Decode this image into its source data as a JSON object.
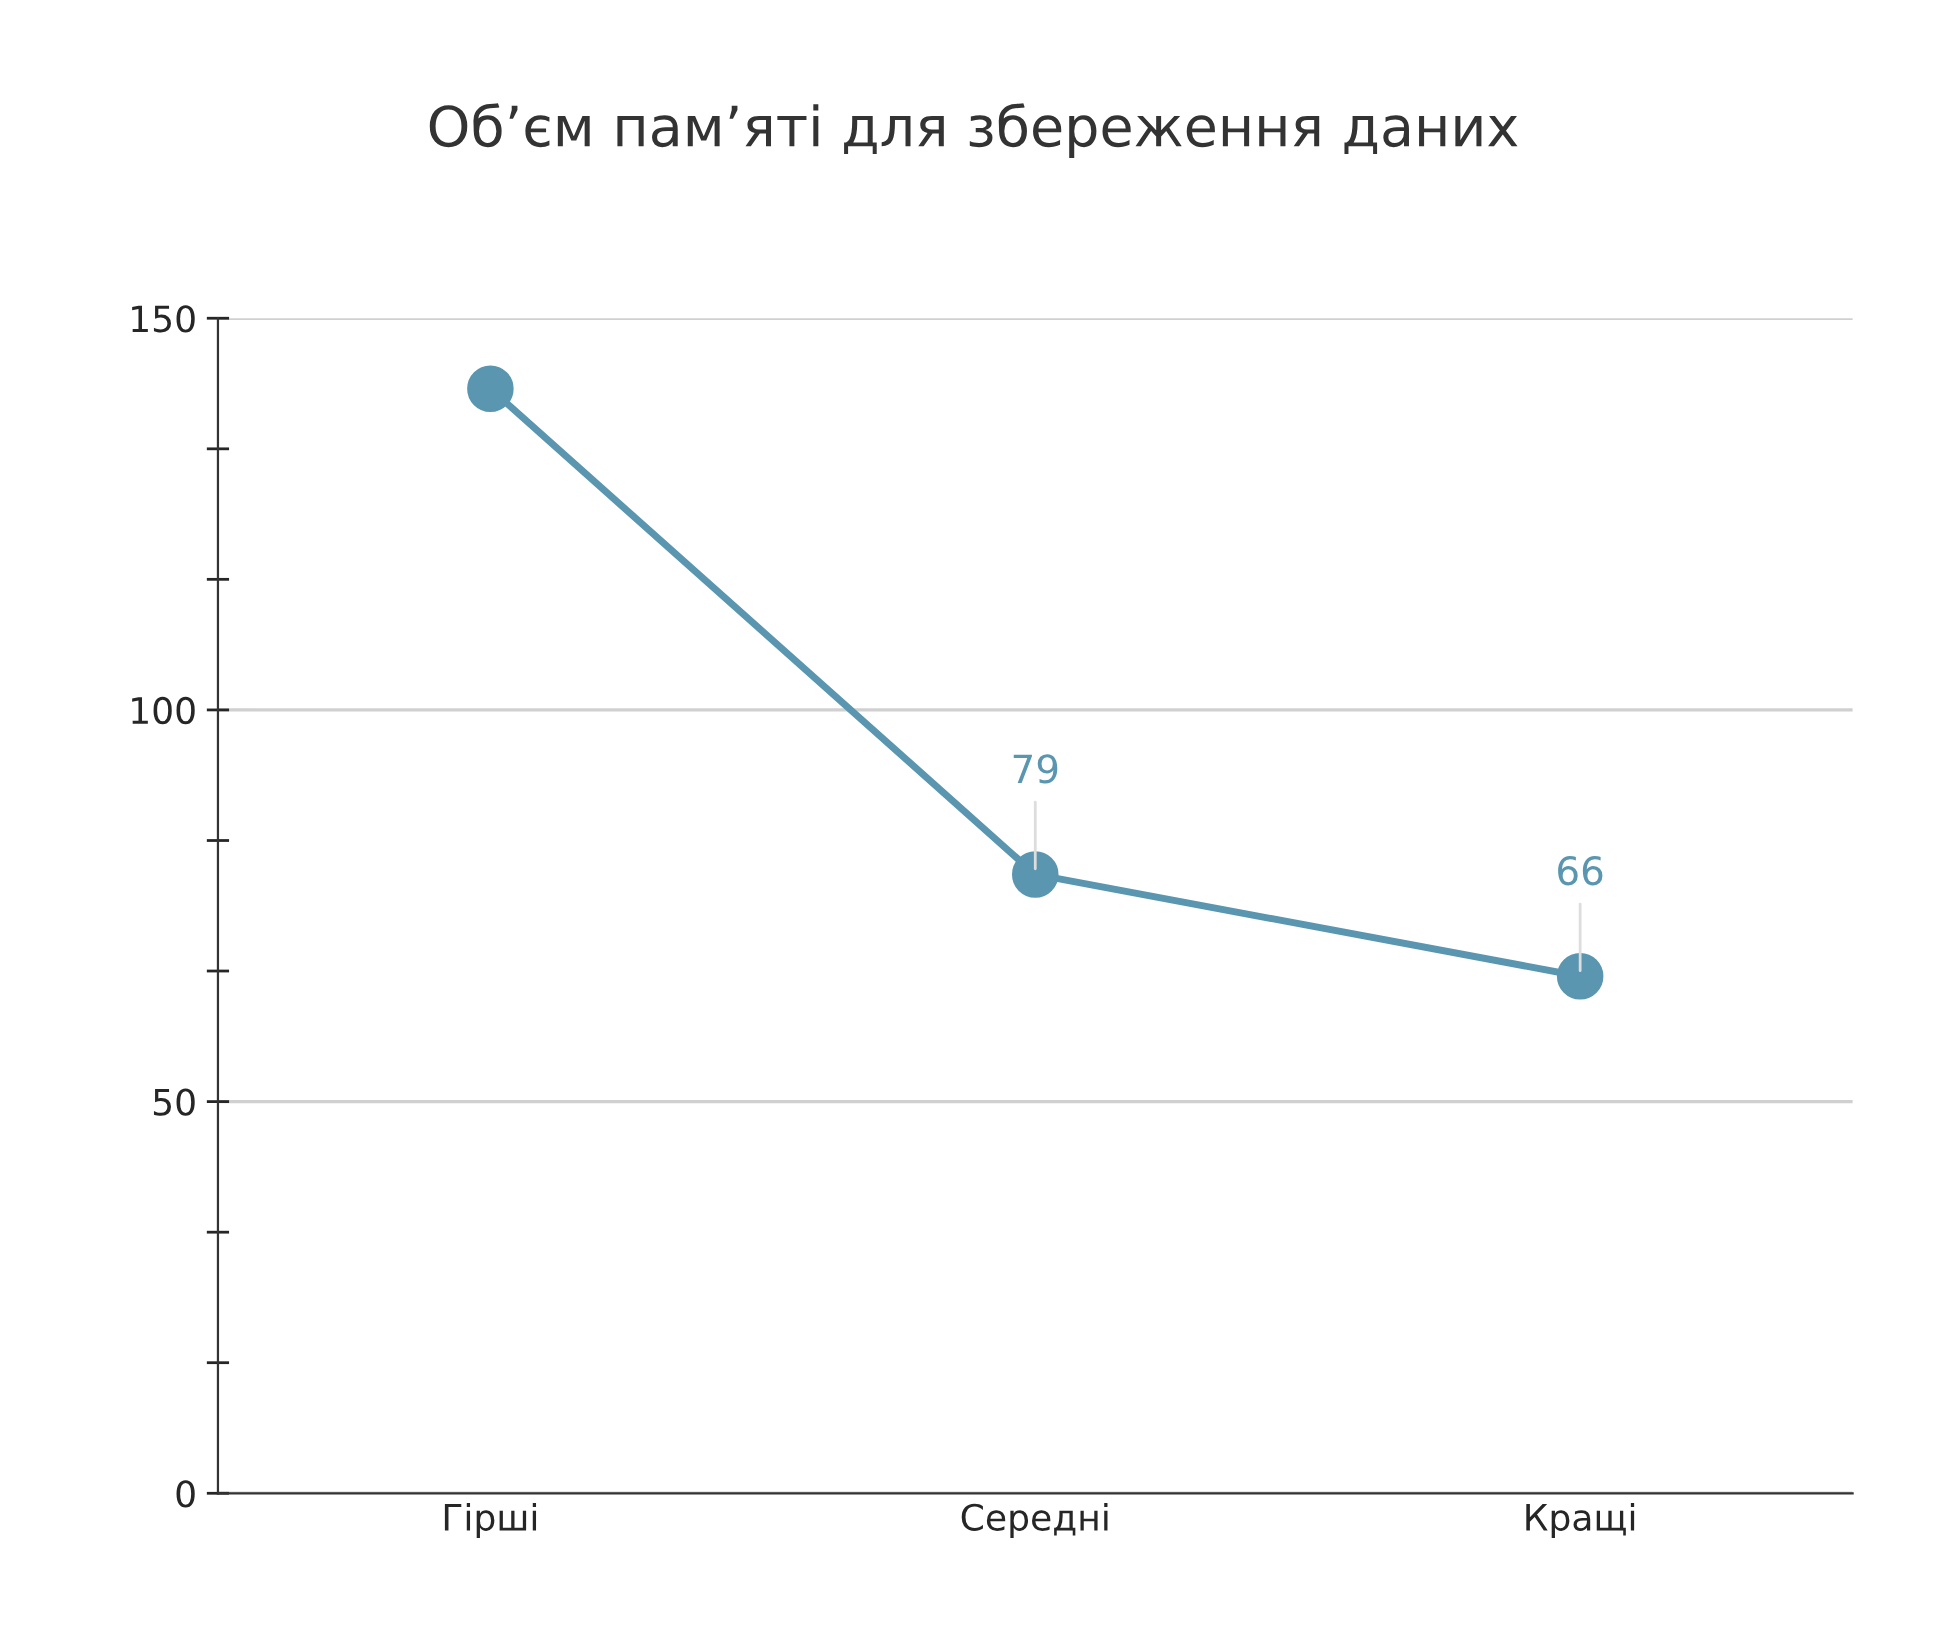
{
  "chart_data": {
    "type": "line",
    "title": "Об’єм пам’яті для збереження даних",
    "categories": [
      "Гірші",
      "Середні",
      "Кращі"
    ],
    "series": [
      {
        "color": "#5a96b0",
        "values": [
          141,
          79,
          66
        ],
        "value_labels": [
          null,
          "79",
          "66"
        ]
      }
    ],
    "ylim": [
      0,
      150
    ],
    "yticks": [
      0,
      {
        "value": 16.67,
        "label": null
      },
      {
        "value": 33.33,
        "label": null
      },
      50,
      {
        "value": 66.67,
        "label": null
      },
      {
        "value": 83.33,
        "label": null
      },
      100,
      {
        "value": 116.67,
        "label": null
      },
      {
        "value": 133.33,
        "label": null
      },
      150
    ],
    "grid": "y",
    "marker": "circle",
    "line_style": "solid"
  }
}
